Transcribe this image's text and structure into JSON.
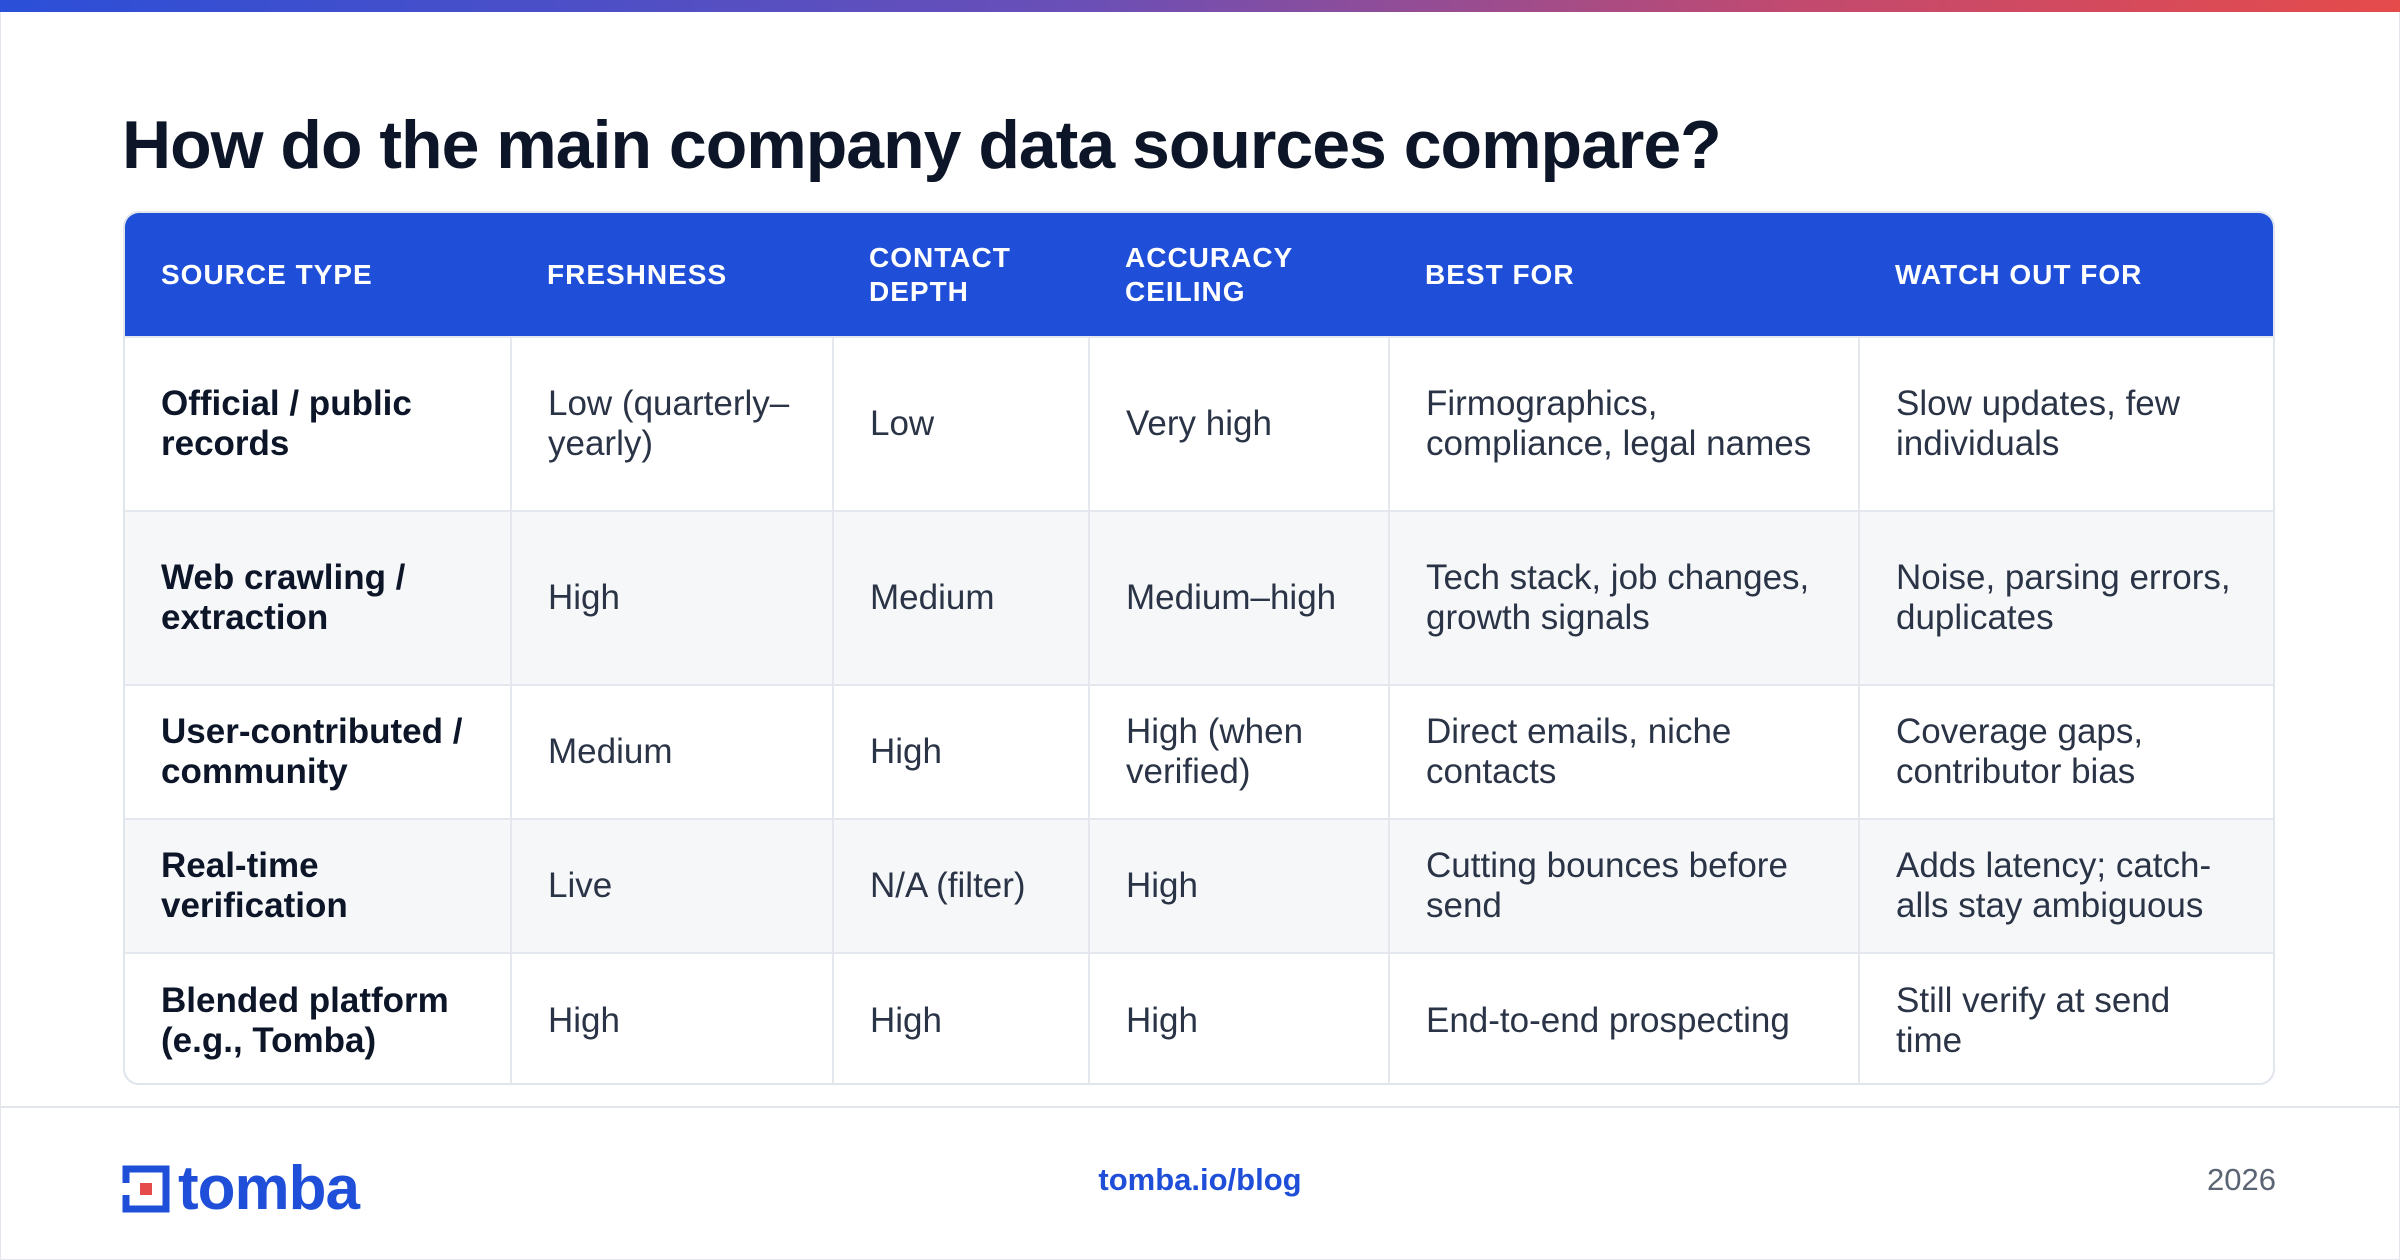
{
  "title": "How do the main company data sources compare?",
  "colors": {
    "accent": "#1f4fd8",
    "header_bg": "#1f4fd8",
    "alt_row": "#f6f7f9"
  },
  "table": {
    "headers": [
      "SOURCE TYPE",
      "FRESHNESS",
      "CONTACT DEPTH",
      "ACCURACY CEILING",
      "BEST FOR",
      "WATCH OUT FOR"
    ],
    "rows": [
      [
        "Official / public records",
        "Low (quarterly–yearly)",
        "Low",
        "Very high",
        "Firmographics, compliance, legal names",
        "Slow updates, few individuals"
      ],
      [
        "Web crawling / extraction",
        "High",
        "Medium",
        "Medium–high",
        "Tech stack, job changes, growth signals",
        "Noise, parsing errors, duplicates"
      ],
      [
        "User-contributed / community",
        "Medium",
        "High",
        "High (when verified)",
        "Direct emails, niche contacts",
        "Coverage gaps, contributor bias"
      ],
      [
        "Real-time verification",
        "Live",
        "N/A (filter)",
        "High",
        "Cutting bounces before send",
        "Adds latency; catch-alls stay ambiguous"
      ],
      [
        "Blended platform (e.g., Tomba)",
        "High",
        "High",
        "High",
        "End-to-end prospecting",
        "Still verify at send time"
      ]
    ]
  },
  "footer": {
    "logo_text": "tomba",
    "logo_icon": "tomba-logo-icon",
    "link": "tomba.io/blog",
    "year": "2026"
  }
}
